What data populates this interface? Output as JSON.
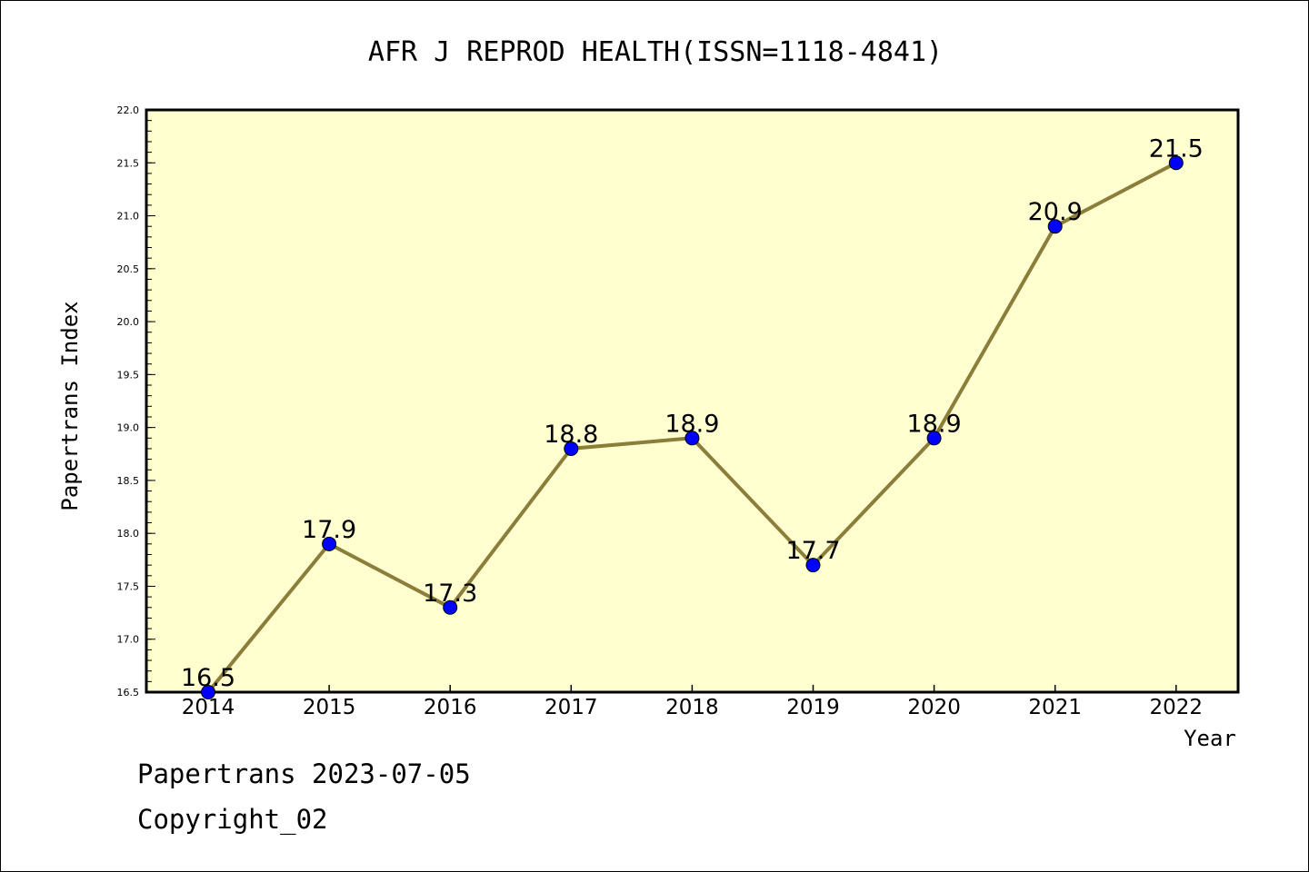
{
  "footer": {
    "line1": "Papertrans 2023-07-05",
    "line2": "Copyright_02"
  },
  "colors": {
    "plot_background": "#ffffd0",
    "line": "#8b7d3a",
    "marker": "#0000ff"
  },
  "chart_data": {
    "type": "line",
    "title": "AFR J REPROD HEALTH(ISSN=1118-4841)",
    "xlabel": "Year",
    "ylabel": "Papertrans Index",
    "categories": [
      "2014",
      "2015",
      "2016",
      "2017",
      "2018",
      "2019",
      "2020",
      "2021",
      "2022"
    ],
    "values": [
      16.5,
      17.9,
      17.3,
      18.8,
      18.9,
      17.7,
      18.9,
      20.9,
      21.5
    ],
    "data_labels": [
      "16.5",
      "17.9",
      "17.3",
      "18.8",
      "18.9",
      "17.7",
      "18.9",
      "20.9",
      "21.5"
    ],
    "ylim": [
      16.5,
      22.0
    ],
    "yticks": [
      "16.5",
      "17.0",
      "17.5",
      "18.0",
      "18.5",
      "19.0",
      "19.5",
      "20.0",
      "20.5",
      "21.0",
      "21.5",
      "22.0"
    ],
    "grid": false,
    "legend": "none"
  }
}
